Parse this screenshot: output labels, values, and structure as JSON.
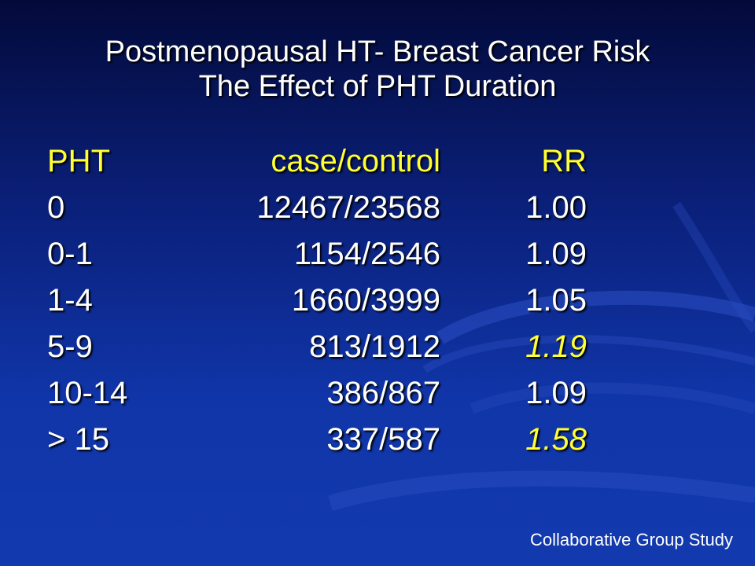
{
  "title": {
    "line1": "Postmenopausal HT- Breast Cancer Risk",
    "line2": "The Effect of PHT Duration"
  },
  "table": {
    "headers": [
      "PHT",
      "case/control",
      "RR"
    ],
    "rows": [
      {
        "pht": "0",
        "cc": "12467/23568",
        "rr": "1.00",
        "highlight": false
      },
      {
        "pht": "0-1",
        "cc": "1154/2546",
        "rr": "1.09",
        "highlight": false
      },
      {
        "pht": "1-4",
        "cc": "1660/3999",
        "rr": "1.05",
        "highlight": false
      },
      {
        "pht": "5-9",
        "cc": "813/1912",
        "rr": "1.19",
        "highlight": true
      },
      {
        "pht": "10-14",
        "cc": "386/867",
        "rr": "1.09",
        "highlight": false
      },
      {
        "pht": "> 15",
        "cc": "337/587",
        "rr": "1.58",
        "highlight": true
      }
    ]
  },
  "footer": "Collaborative Group Study",
  "colors": {
    "background": "#0a2a8c",
    "header_text": "#ffff33",
    "highlight_text": "#ffff33",
    "body_text": "#ffffff"
  }
}
